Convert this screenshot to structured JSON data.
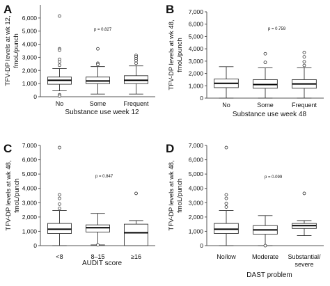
{
  "chart_data": [
    {
      "id": "A",
      "type": "box",
      "panel_label": "A",
      "ylabel_line1": "TFV-DP levels at wk 12,",
      "ylabel_line2": "fmoL/punch",
      "xlabel": "Substance use week 12",
      "annotation": "p = 0.827",
      "ylim": [
        0,
        7000
      ],
      "yticks": [
        0,
        1000,
        2000,
        3000,
        4000,
        5000,
        6000
      ],
      "ytick_labels": [
        "0",
        "1,000",
        "2,000",
        "3,000",
        "4,000",
        "5,000",
        "6,000"
      ],
      "categories": [
        "No",
        "Some",
        "Frequent"
      ],
      "boxes": [
        {
          "min": 450,
          "q1": 950,
          "median": 1250,
          "q3": 1500,
          "max": 2150,
          "outliers": [
            6150,
            3650,
            3550,
            2850,
            2650,
            2400,
            150,
            50
          ]
        },
        {
          "min": 200,
          "q1": 1000,
          "median": 1200,
          "q3": 1500,
          "max": 2300,
          "outliers": [
            3650,
            2550,
            2450
          ]
        },
        {
          "min": 200,
          "q1": 1000,
          "median": 1250,
          "q3": 1600,
          "max": 2350,
          "outliers": [
            3150,
            3050,
            2900,
            2750,
            2550
          ]
        }
      ]
    },
    {
      "id": "B",
      "type": "box",
      "panel_label": "B",
      "ylabel_line1": "TFV-DP levels at wk 48,",
      "ylabel_line2": "fmoL/punch",
      "xlabel": "Substance use week 48",
      "annotation": "p = 0.759",
      "ylim": [
        0,
        7000
      ],
      "yticks": [
        0,
        1000,
        2000,
        3000,
        4000,
        5000,
        6000,
        7000
      ],
      "ytick_labels": [
        "0",
        "1,000",
        "2,000",
        "3,000",
        "4,000",
        "5,000",
        "6,000",
        "7,000"
      ],
      "categories": [
        "No",
        "Some",
        "Frequent"
      ],
      "boxes": [
        {
          "min": 0,
          "q1": 850,
          "median": 1200,
          "q3": 1550,
          "max": 2550,
          "outliers": []
        },
        {
          "min": 0,
          "q1": 800,
          "median": 1100,
          "q3": 1500,
          "max": 2450,
          "outliers": [
            3600,
            2900
          ]
        },
        {
          "min": 0,
          "q1": 800,
          "median": 1150,
          "q3": 1500,
          "max": 2450,
          "outliers": [
            3700,
            3350,
            2950,
            2650
          ]
        }
      ]
    },
    {
      "id": "C",
      "type": "box",
      "panel_label": "C",
      "ylabel_line1": "TFV-DP levels at wk 48,",
      "ylabel_line2": "fmoL/punch",
      "xlabel": "AUDIT score",
      "annotation": "p = 0.847",
      "ylim": [
        0,
        7000
      ],
      "yticks": [
        0,
        1000,
        2000,
        3000,
        4000,
        5000,
        6000,
        7000
      ],
      "ytick_labels": [
        "0",
        "1,000",
        "2,000",
        "3,000",
        "4,000",
        "5,000",
        "6,000",
        "7,000"
      ],
      "categories": [
        "<8",
        "8–15",
        "≥16"
      ],
      "boxes": [
        {
          "min": 0,
          "q1": 850,
          "median": 1150,
          "q3": 1550,
          "max": 2450,
          "outliers": [
            6850,
            3550,
            3300,
            2900,
            2600
          ]
        },
        {
          "min": 50,
          "q1": 950,
          "median": 1250,
          "q3": 1450,
          "max": 2250,
          "outliers": [
            50
          ]
        },
        {
          "min": 0,
          "q1": 0,
          "median": 900,
          "q3": 1500,
          "max": 1750,
          "outliers": [
            3650
          ]
        }
      ]
    },
    {
      "id": "D",
      "type": "box",
      "panel_label": "D",
      "ylabel_line1": "TFV-DP levels at wk 48,",
      "ylabel_line2": "fmoL/punch",
      "xlabel": "DAST problem",
      "annotation": "p = 0.099",
      "ylim": [
        0,
        7000
      ],
      "yticks": [
        0,
        1000,
        2000,
        3000,
        4000,
        5000,
        6000,
        7000
      ],
      "ytick_labels": [
        "0",
        "1,000",
        "2,000",
        "3,000",
        "4,000",
        "5,000",
        "6,000",
        "7,000"
      ],
      "categories": [
        "No/low",
        "Moderate",
        "Substantial/\nsevere"
      ],
      "boxes": [
        {
          "min": 0,
          "q1": 850,
          "median": 1150,
          "q3": 1550,
          "max": 2450,
          "outliers": [
            6850,
            3550,
            3300,
            2950,
            2700
          ]
        },
        {
          "min": 0,
          "q1": 800,
          "median": 1100,
          "q3": 1400,
          "max": 2100,
          "outliers": [
            0
          ]
        },
        {
          "min": 700,
          "q1": 1200,
          "median": 1400,
          "q3": 1550,
          "max": 1750,
          "outliers": [
            3650
          ]
        }
      ]
    }
  ]
}
